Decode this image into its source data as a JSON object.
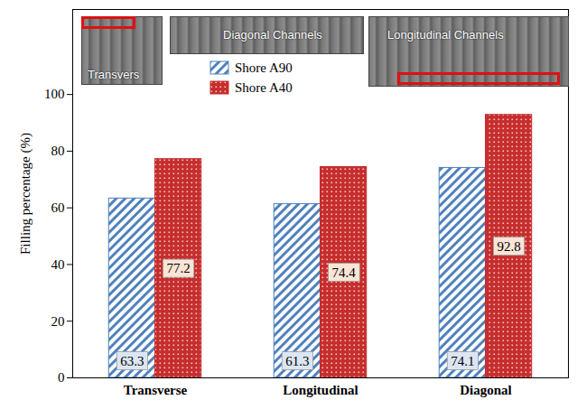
{
  "chart_data": {
    "type": "bar",
    "categories": [
      "Transverse",
      "Longitudinal",
      "Diagonal"
    ],
    "y_label": "Filling percentage (%)",
    "ylim": [
      0,
      130
    ],
    "yticks": [
      0,
      20,
      40,
      60,
      80,
      100
    ],
    "grid": false,
    "series": [
      {
        "name": "Shore A90",
        "color": "#4f81bd",
        "values": [
          63.3,
          61.3,
          74.1
        ]
      },
      {
        "name": "Shore A40",
        "color": "#c62d2d",
        "values": [
          77.2,
          74.4,
          92.8
        ]
      }
    ],
    "data_labels": true,
    "legend": "top",
    "annotations": [
      "Transvers",
      "Diagonal Channels",
      "Longitudinal Channels"
    ]
  }
}
